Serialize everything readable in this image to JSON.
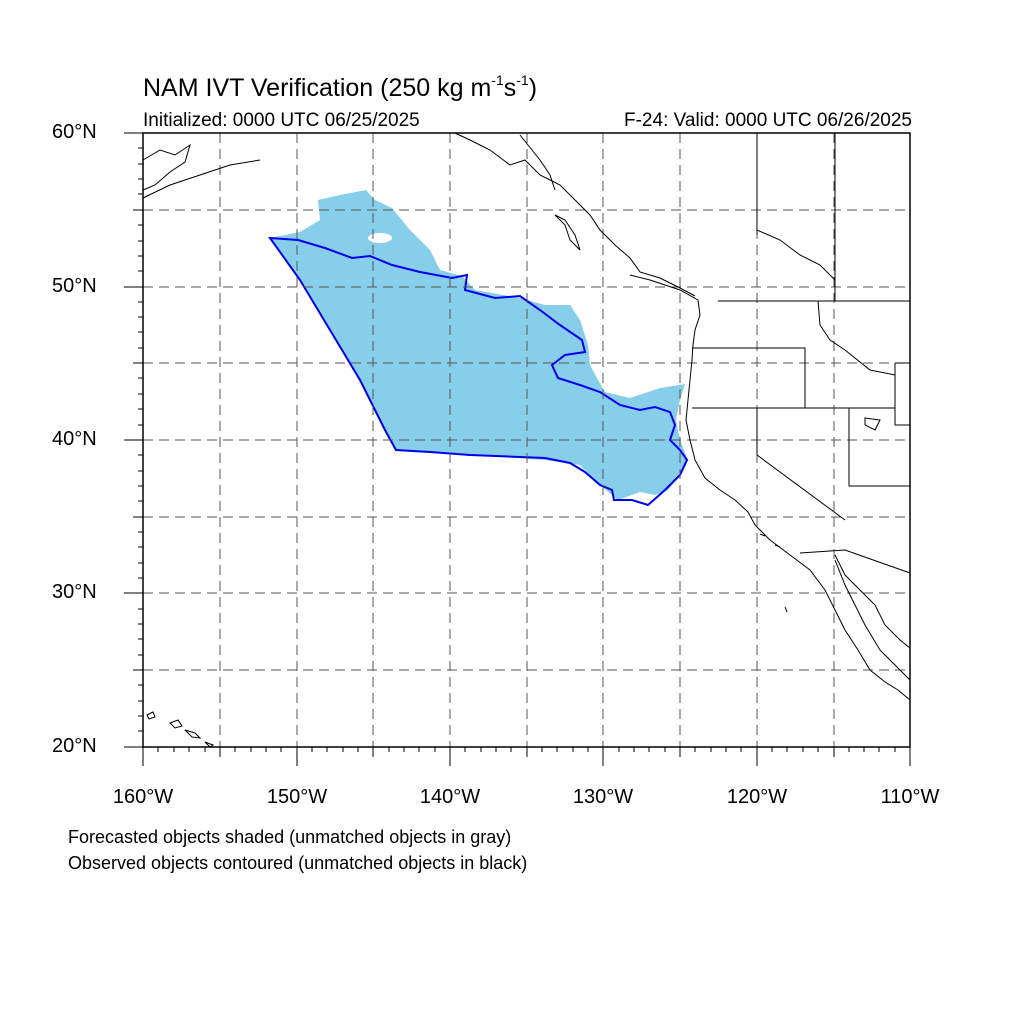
{
  "title": {
    "prefix": "NAM IVT Verification (250 kg m",
    "exp1": "-1",
    "mid": "s",
    "exp2": "-1",
    "suffix": ")"
  },
  "initialized": "Initialized: 0000 UTC 06/25/2025",
  "valid": "F-24: Valid: 0000 UTC 06/26/2025",
  "lat_labels": [
    "60°N",
    "50°N",
    "40°N",
    "30°N",
    "20°N"
  ],
  "lon_labels": [
    "160°W",
    "150°W",
    "140°W",
    "130°W",
    "120°W",
    "110°W"
  ],
  "map_extent": {
    "lon_min": -160,
    "lon_max": -110,
    "lat_min": 20,
    "lat_max": 60
  },
  "footnotes": {
    "forecast": "Forecasted objects shaded (unmatched objects in gray)",
    "observed": "Observed objects contoured (unmatched objects in black)"
  },
  "colors": {
    "forecast_fill": "#87ceeb",
    "observed_contour": "#0000ee",
    "coastline": "#000000",
    "grid": "#555555"
  }
}
